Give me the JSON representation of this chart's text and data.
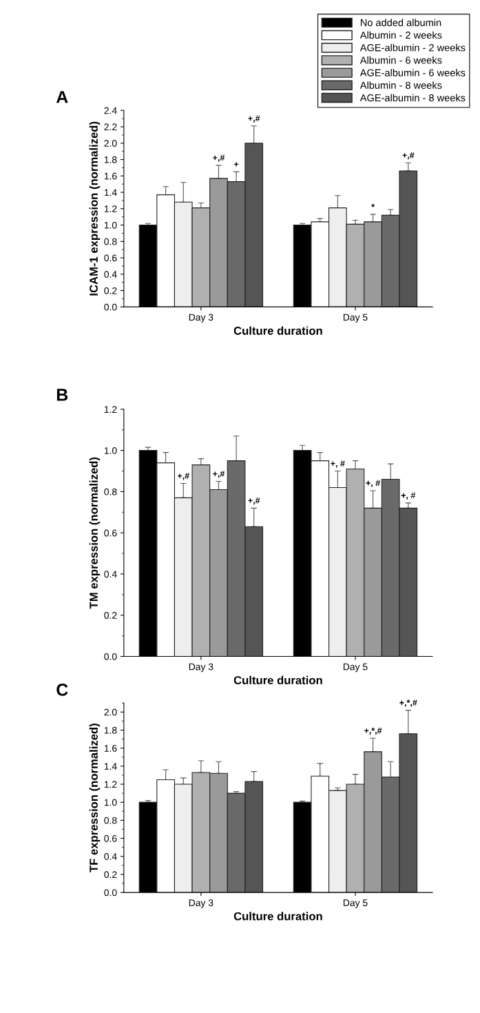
{
  "chart_data": [
    {
      "type": "bar",
      "title": "A",
      "xlabel": "Culture duration",
      "ylabel": "ICAM-1 expression (normalized)",
      "categories": [
        "Day 3",
        "Day 5"
      ],
      "series": [
        {
          "name": "No added albumin",
          "color": "#000000",
          "values": [
            1.0,
            1.0
          ],
          "errors": [
            0.02,
            0.02
          ]
        },
        {
          "name": "Albumin - 2 weeks",
          "color": "#ffffff",
          "values": [
            1.37,
            1.04
          ],
          "errors": [
            0.1,
            0.04
          ]
        },
        {
          "name": "AGE-albumin - 2 weeks",
          "color": "#eeeeee",
          "values": [
            1.28,
            1.21
          ],
          "errors": [
            0.24,
            0.15
          ]
        },
        {
          "name": "Albumin - 6 weeks",
          "color": "#b0b0b0",
          "values": [
            1.21,
            1.01
          ],
          "errors": [
            0.06,
            0.05
          ]
        },
        {
          "name": "AGE-albumin - 6 weeks",
          "color": "#9a9a9a",
          "values": [
            1.57,
            1.04
          ],
          "errors": [
            0.16,
            0.09
          ]
        },
        {
          "name": "Albumin - 8 weeks",
          "color": "#6a6a6a",
          "values": [
            1.53,
            1.12
          ],
          "errors": [
            0.12,
            0.07
          ]
        },
        {
          "name": "AGE-albumin - 8 weeks",
          "color": "#555555",
          "values": [
            2.0,
            1.66
          ],
          "errors": [
            0.21,
            0.1
          ]
        }
      ],
      "ylim": [
        0,
        2.4
      ],
      "yticks": [
        {
          "value": 0,
          "label": "0.0"
        },
        {
          "value": 0.2,
          "label": "0.2"
        },
        {
          "value": 0.4,
          "label": "0.4"
        },
        {
          "value": 0.6,
          "label": "0.6"
        },
        {
          "value": 0.8,
          "label": "0.8"
        },
        {
          "value": 1.0,
          "label": "1.0"
        },
        {
          "value": 1.2,
          "label": "1.2"
        },
        {
          "value": 1.4,
          "label": "1.4"
        },
        {
          "value": 1.6,
          "label": "1.6"
        },
        {
          "value": 1.8,
          "label": "1.8"
        },
        {
          "value": 2.0,
          "label": "2.0"
        },
        {
          "value": 2.2,
          "label": "2.2"
        },
        {
          "value": 2.4,
          "label": "2.4"
        }
      ],
      "legend": "top right",
      "annotations": [
        "+,#",
        "+",
        "+,#",
        "*",
        "+,#"
      ]
    },
    {
      "type": "bar",
      "title": "B",
      "xlabel": "Culture duration",
      "ylabel": "TM expression (normalized)",
      "categories": [
        "Day 3",
        "Day 5"
      ],
      "series": [
        {
          "color": "#000000",
          "values": [
            1.0,
            1.0
          ],
          "errors": [
            0.015,
            0.025
          ]
        },
        {
          "color": "#ffffff",
          "values": [
            0.94,
            0.95
          ],
          "errors": [
            0.05,
            0.04
          ]
        },
        {
          "color": "#eeeeee",
          "values": [
            0.77,
            0.82
          ],
          "errors": [
            0.07,
            0.08
          ]
        },
        {
          "color": "#b0b0b0",
          "values": [
            0.93,
            0.91
          ],
          "errors": [
            0.03,
            0.04
          ]
        },
        {
          "color": "#9a9a9a",
          "values": [
            0.81,
            0.72
          ],
          "errors": [
            0.04,
            0.085
          ]
        },
        {
          "color": "#6a6a6a",
          "values": [
            0.95,
            0.86
          ],
          "errors": [
            0.12,
            0.075
          ]
        },
        {
          "color": "#555555",
          "values": [
            0.63,
            0.72
          ],
          "errors": [
            0.09,
            0.025
          ]
        }
      ],
      "ylim": [
        0,
        1.2
      ],
      "yticks": [
        {
          "value": 0,
          "label": "0.0"
        },
        {
          "value": 0.2,
          "label": "0.2"
        },
        {
          "value": 0.4,
          "label": "0.4"
        },
        {
          "value": 0.6,
          "label": "0.6"
        },
        {
          "value": 0.8,
          "label": "0.8"
        },
        {
          "value": 1.0,
          "label": "1.0"
        },
        {
          "value": 1.2,
          "label": "1.2"
        }
      ],
      "annotations": [
        "+,#",
        "+,#",
        "+,#",
        "+, #",
        "+, #",
        "+, #"
      ]
    },
    {
      "type": "bar",
      "title": "C",
      "xlabel": "Culture duration",
      "ylabel": "TF expression (normalized)",
      "categories": [
        "Day 3",
        "Day 5"
      ],
      "series": [
        {
          "color": "#000000",
          "values": [
            1.0,
            1.0
          ],
          "errors": [
            0.02,
            0.015
          ]
        },
        {
          "color": "#ffffff",
          "values": [
            1.25,
            1.29
          ],
          "errors": [
            0.11,
            0.14
          ]
        },
        {
          "color": "#eeeeee",
          "values": [
            1.2,
            1.13
          ],
          "errors": [
            0.07,
            0.03
          ]
        },
        {
          "color": "#b0b0b0",
          "values": [
            1.33,
            1.2
          ],
          "errors": [
            0.13,
            0.11
          ]
        },
        {
          "color": "#9a9a9a",
          "values": [
            1.32,
            1.56
          ],
          "errors": [
            0.13,
            0.15
          ]
        },
        {
          "color": "#6a6a6a",
          "values": [
            1.1,
            1.28
          ],
          "errors": [
            0.02,
            0.17
          ]
        },
        {
          "color": "#555555",
          "values": [
            1.23,
            1.76
          ],
          "errors": [
            0.11,
            0.26
          ]
        }
      ],
      "ylim": [
        0,
        2.1
      ],
      "yticks": [
        {
          "value": 0,
          "label": "0.0"
        },
        {
          "value": 0.2,
          "label": "0.2"
        },
        {
          "value": 0.4,
          "label": "0.4"
        },
        {
          "value": 0.6,
          "label": "0.6"
        },
        {
          "value": 0.8,
          "label": "0.8"
        },
        {
          "value": 1.0,
          "label": "1.0"
        },
        {
          "value": 1.2,
          "label": "1.2"
        },
        {
          "value": 1.4,
          "label": "1.4"
        },
        {
          "value": 1.6,
          "label": "1.6"
        },
        {
          "value": 1.8,
          "label": "1.8"
        },
        {
          "value": 2.0,
          "label": "2.0"
        }
      ],
      "annotations": [
        "+,*,#",
        "+,*,#"
      ]
    }
  ]
}
